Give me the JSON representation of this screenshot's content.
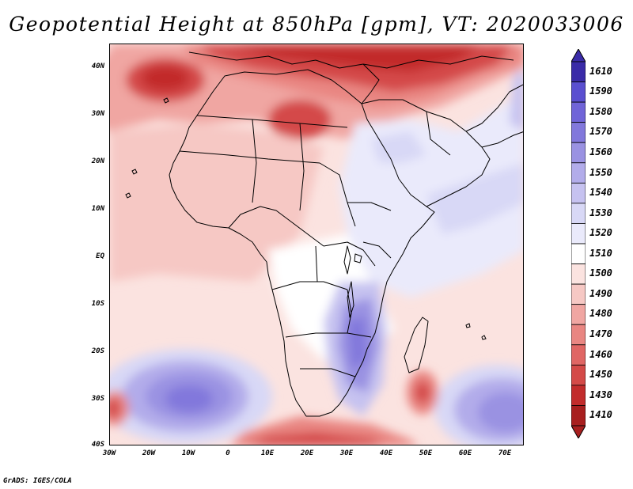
{
  "title": "Geopotential Height at 850hPa [gpm], VT: 2020033006",
  "y_axis": {
    "labels": [
      "40N",
      "30N",
      "20N",
      "10N",
      "EQ",
      "10S",
      "20S",
      "30S",
      "40S"
    ]
  },
  "x_axis": {
    "labels": [
      "30W",
      "20W",
      "10W",
      "0",
      "10E",
      "20E",
      "30E",
      "40E",
      "50E",
      "60E",
      "70E"
    ]
  },
  "colorbar": {
    "labels": [
      "1610",
      "1590",
      "1580",
      "1570",
      "1560",
      "1550",
      "1540",
      "1530",
      "1520",
      "1510",
      "1500",
      "1490",
      "1480",
      "1470",
      "1460",
      "1450",
      "1430",
      "1410"
    ],
    "colors": [
      "#3a2ba8",
      "#5a4fd0",
      "#7064d8",
      "#8278dc",
      "#9a92e2",
      "#b2acea",
      "#c6c2f0",
      "#d8d8f6",
      "#eaeafb",
      "#ffffff",
      "#fbe3e0",
      "#f6c8c4",
      "#f0a6a2",
      "#e98682",
      "#e06664",
      "#d44a48",
      "#c22c2c",
      "#a81f1f"
    ]
  },
  "footer": "GrADS: IGES/COLA",
  "map_data": {
    "region": "Africa and surrounding oceans",
    "lon_range": [
      -30,
      75
    ],
    "lat_range": [
      -40,
      45
    ]
  }
}
